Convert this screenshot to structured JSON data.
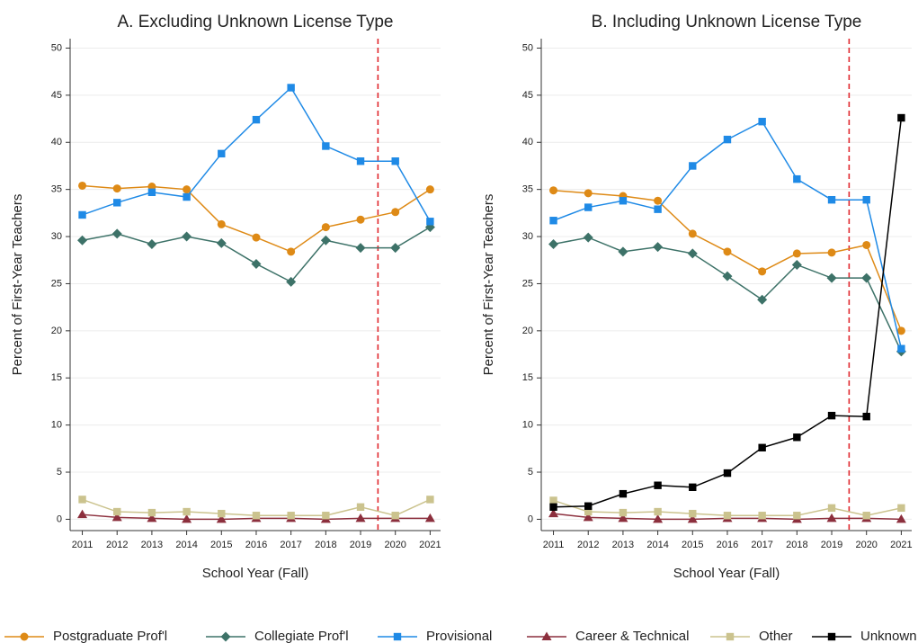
{
  "chart_data": [
    {
      "type": "line",
      "title": "A. Excluding Unknown License Type",
      "xlabel": "School Year (Fall)",
      "ylabel": "Percent of First-Year Teachers",
      "x": [
        2011,
        2012,
        2013,
        2014,
        2015,
        2016,
        2017,
        2018,
        2019,
        2020,
        2021
      ],
      "xlim": [
        2010.65,
        2021.3
      ],
      "xticks": [
        2011,
        2012,
        2013,
        2014,
        2015,
        2016,
        2017,
        2018,
        2019,
        2020,
        2021
      ],
      "ylim": [
        -1.2,
        51
      ],
      "yticks": [
        0,
        5,
        10,
        15,
        20,
        25,
        30,
        35,
        40,
        45,
        50
      ],
      "grid": true,
      "reference_line": {
        "x": 2019.5,
        "color": "#e0282e"
      },
      "series": [
        {
          "name": "Postgraduate Prof'l",
          "color": "#de8a16",
          "marker": "circle",
          "values": [
            35.4,
            35.1,
            35.3,
            35.0,
            31.3,
            29.9,
            28.4,
            31.0,
            31.8,
            32.6,
            35.0
          ]
        },
        {
          "name": "Collegiate Prof'l",
          "color": "#3d7268",
          "marker": "diamond",
          "values": [
            29.6,
            30.3,
            29.2,
            30.0,
            29.3,
            27.1,
            25.2,
            29.6,
            28.8,
            28.8,
            31.0
          ]
        },
        {
          "name": "Provisional",
          "color": "#1f8ae6",
          "marker": "square",
          "values": [
            32.3,
            33.6,
            34.7,
            34.2,
            38.8,
            42.4,
            45.8,
            39.6,
            38.0,
            38.0,
            31.6
          ]
        },
        {
          "name": "Career & Technical",
          "color": "#8c2f3d",
          "marker": "triangle",
          "values": [
            0.5,
            0.2,
            0.1,
            0.0,
            0.0,
            0.1,
            0.1,
            0.0,
            0.1,
            0.1,
            0.1
          ]
        },
        {
          "name": "Other",
          "color": "#cbc38e",
          "marker": "square",
          "values": [
            2.1,
            0.8,
            0.7,
            0.8,
            0.6,
            0.4,
            0.4,
            0.4,
            1.3,
            0.4,
            2.1
          ]
        }
      ]
    },
    {
      "type": "line",
      "title": "B. Including Unknown License Type",
      "xlabel": "School Year (Fall)",
      "ylabel": "Percent of First-Year Teachers",
      "x": [
        2011,
        2012,
        2013,
        2014,
        2015,
        2016,
        2017,
        2018,
        2019,
        2020,
        2021
      ],
      "xlim": [
        2010.65,
        2021.3
      ],
      "xticks": [
        2011,
        2012,
        2013,
        2014,
        2015,
        2016,
        2017,
        2018,
        2019,
        2020,
        2021
      ],
      "ylim": [
        -1.2,
        51
      ],
      "yticks": [
        0,
        5,
        10,
        15,
        20,
        25,
        30,
        35,
        40,
        45,
        50
      ],
      "grid": true,
      "reference_line": {
        "x": 2019.5,
        "color": "#e0282e"
      },
      "legend": "bottom",
      "series": [
        {
          "name": "Postgraduate Prof'l",
          "color": "#de8a16",
          "marker": "circle",
          "values": [
            34.9,
            34.6,
            34.3,
            33.8,
            30.3,
            28.4,
            26.3,
            28.2,
            28.3,
            29.1,
            20.0
          ]
        },
        {
          "name": "Collegiate Prof'l",
          "color": "#3d7268",
          "marker": "diamond",
          "values": [
            29.2,
            29.9,
            28.4,
            28.9,
            28.2,
            25.8,
            23.3,
            27.0,
            25.6,
            25.6,
            17.8
          ]
        },
        {
          "name": "Provisional",
          "color": "#1f8ae6",
          "marker": "square",
          "values": [
            31.7,
            33.1,
            33.8,
            32.9,
            37.5,
            40.3,
            42.2,
            36.1,
            33.9,
            33.9,
            18.1
          ]
        },
        {
          "name": "Career & Technical",
          "color": "#8c2f3d",
          "marker": "triangle",
          "values": [
            0.6,
            0.2,
            0.1,
            0.0,
            0.0,
            0.1,
            0.1,
            0.0,
            0.1,
            0.1,
            0.0
          ]
        },
        {
          "name": "Other",
          "color": "#cbc38e",
          "marker": "square",
          "values": [
            2.0,
            0.8,
            0.7,
            0.8,
            0.6,
            0.4,
            0.4,
            0.4,
            1.2,
            0.4,
            1.2
          ]
        },
        {
          "name": "Unknown",
          "color": "#000000",
          "marker": "square",
          "values": [
            1.3,
            1.4,
            2.7,
            3.6,
            3.4,
            4.9,
            7.6,
            8.7,
            11.0,
            10.9,
            42.6
          ]
        }
      ]
    }
  ]
}
